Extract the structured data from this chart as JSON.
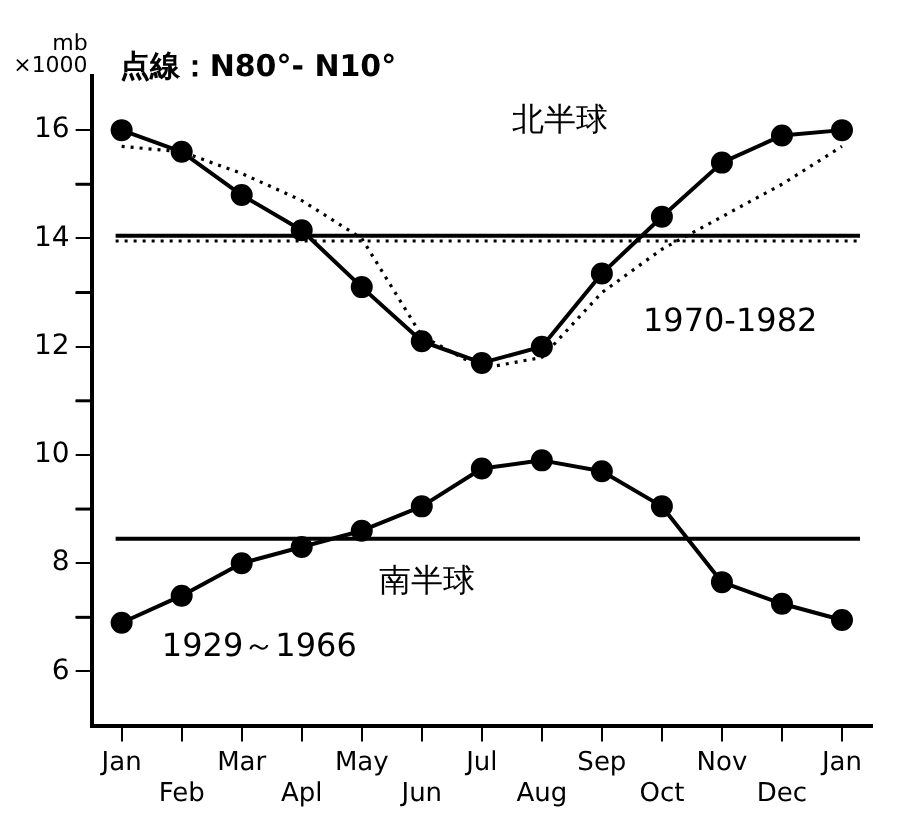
{
  "chart_data": {
    "type": "line",
    "title": "点線：N80°- N10°",
    "ylabel": "mb ×1000",
    "categories": [
      "Jan",
      "Feb",
      "Mar",
      "Apl",
      "May",
      "Jun",
      "Jul",
      "Aug",
      "Sep",
      "Oct",
      "Nov",
      "Dec",
      "Jan"
    ],
    "series": [
      {
        "color": "#000000",
        "values": [
          16.0,
          15.6,
          14.8,
          14.15,
          13.1,
          12.1,
          11.7,
          12.0,
          13.35,
          14.4,
          15.4,
          15.9,
          16.0
        ]
      },
      {
        "color": "#000000",
        "marker": "none",
        "line_style": "dotted",
        "values": [
          15.7,
          15.6,
          15.2,
          14.7,
          14.0,
          12.2,
          11.6,
          11.8,
          13.0,
          13.8,
          14.4,
          15.0,
          15.7
        ]
      },
      {
        "color": "#000000",
        "values": [
          6.9,
          7.4,
          8.0,
          8.3,
          8.6,
          9.05,
          9.75,
          9.9,
          9.7,
          9.05,
          7.65,
          7.25,
          6.95
        ]
      }
    ],
    "ylim": [
      5,
      17
    ],
    "yticks": [
      6,
      {
        "value": 7,
        "label": null
      },
      8,
      {
        "value": 9,
        "label": null
      },
      10,
      {
        "value": 11,
        "label": null
      },
      12,
      {
        "value": 13,
        "label": null
      },
      14,
      {
        "value": 15,
        "label": null
      },
      16
    ],
    "ref_lines": [
      {
        "axis": "y",
        "value": 14.05,
        "color": "#000000",
        "line_style": "solid"
      },
      {
        "axis": "y",
        "value": 13.95,
        "color": "#000000",
        "line_style": "dotted"
      },
      {
        "axis": "y",
        "value": 8.45,
        "color": "#000000",
        "line_style": "solid"
      }
    ],
    "annotations": [
      "北半球",
      "1970-1982",
      "南半球",
      "1929～1966"
    ],
    "marker": "circle",
    "line_style": "solid",
    "grid": false,
    "legend": false
  }
}
